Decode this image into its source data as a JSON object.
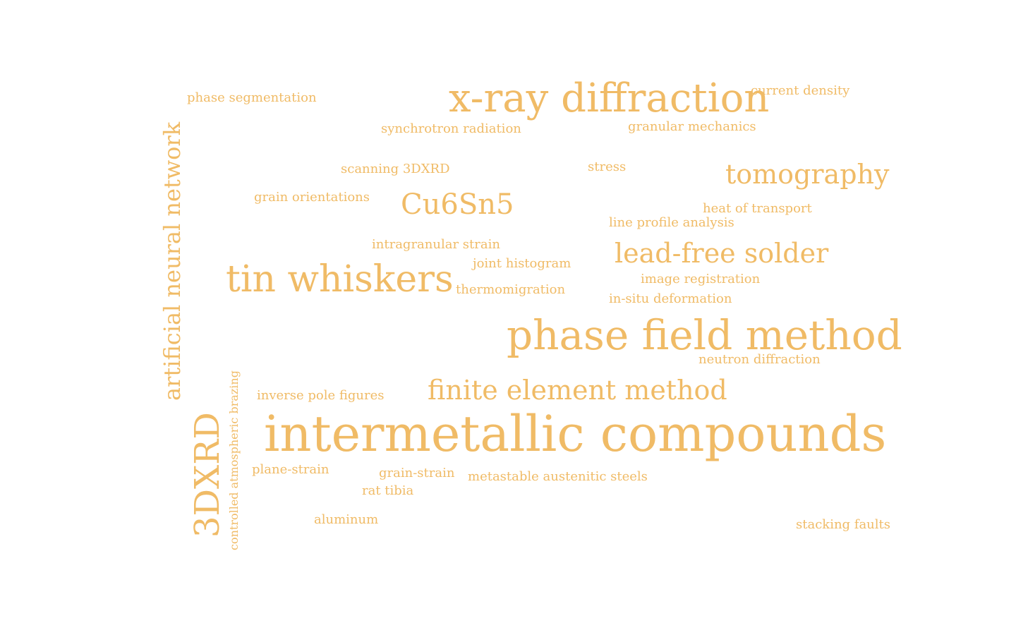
{
  "cloud": {
    "color": "#f0bb66",
    "words": {
      "xray": "x-ray diffraction",
      "tomography": "tomography",
      "cu6sn5": "Cu6Sn5",
      "lead_free": "lead-free solder",
      "tin_whiskers": "tin whiskers",
      "phase_field": "phase field method",
      "finite_element": "finite element method",
      "intermetallic": "intermetallic compounds",
      "ann": "artificial neural network",
      "dxrd": "3DXRD",
      "controlled_brazing": "controlled atmospheric brazing",
      "phase_segmentation": "phase segmentation",
      "current_density": "current density",
      "synchrotron": "synchrotron radiation",
      "granular": "granular mechanics",
      "scanning": "scanning 3DXRD",
      "stress": "stress",
      "grain_orientations": "grain orientations",
      "heat_transport": "heat of transport",
      "line_profile": "line profile analysis",
      "intragranular": "intragranular strain",
      "joint_histogram": "joint histogram",
      "image_registration": "image registration",
      "thermomigration": "thermomigration",
      "insitu": "in-situ deformation",
      "neutron": "neutron diffraction",
      "ipf": "inverse pole figures",
      "plane_strain": "plane-strain",
      "grain_strain": "grain-strain",
      "metastable": "metastable austenitic steels",
      "rat_tibia": "rat tibia",
      "aluminum": "aluminum",
      "stacking_faults": "stacking faults"
    }
  }
}
